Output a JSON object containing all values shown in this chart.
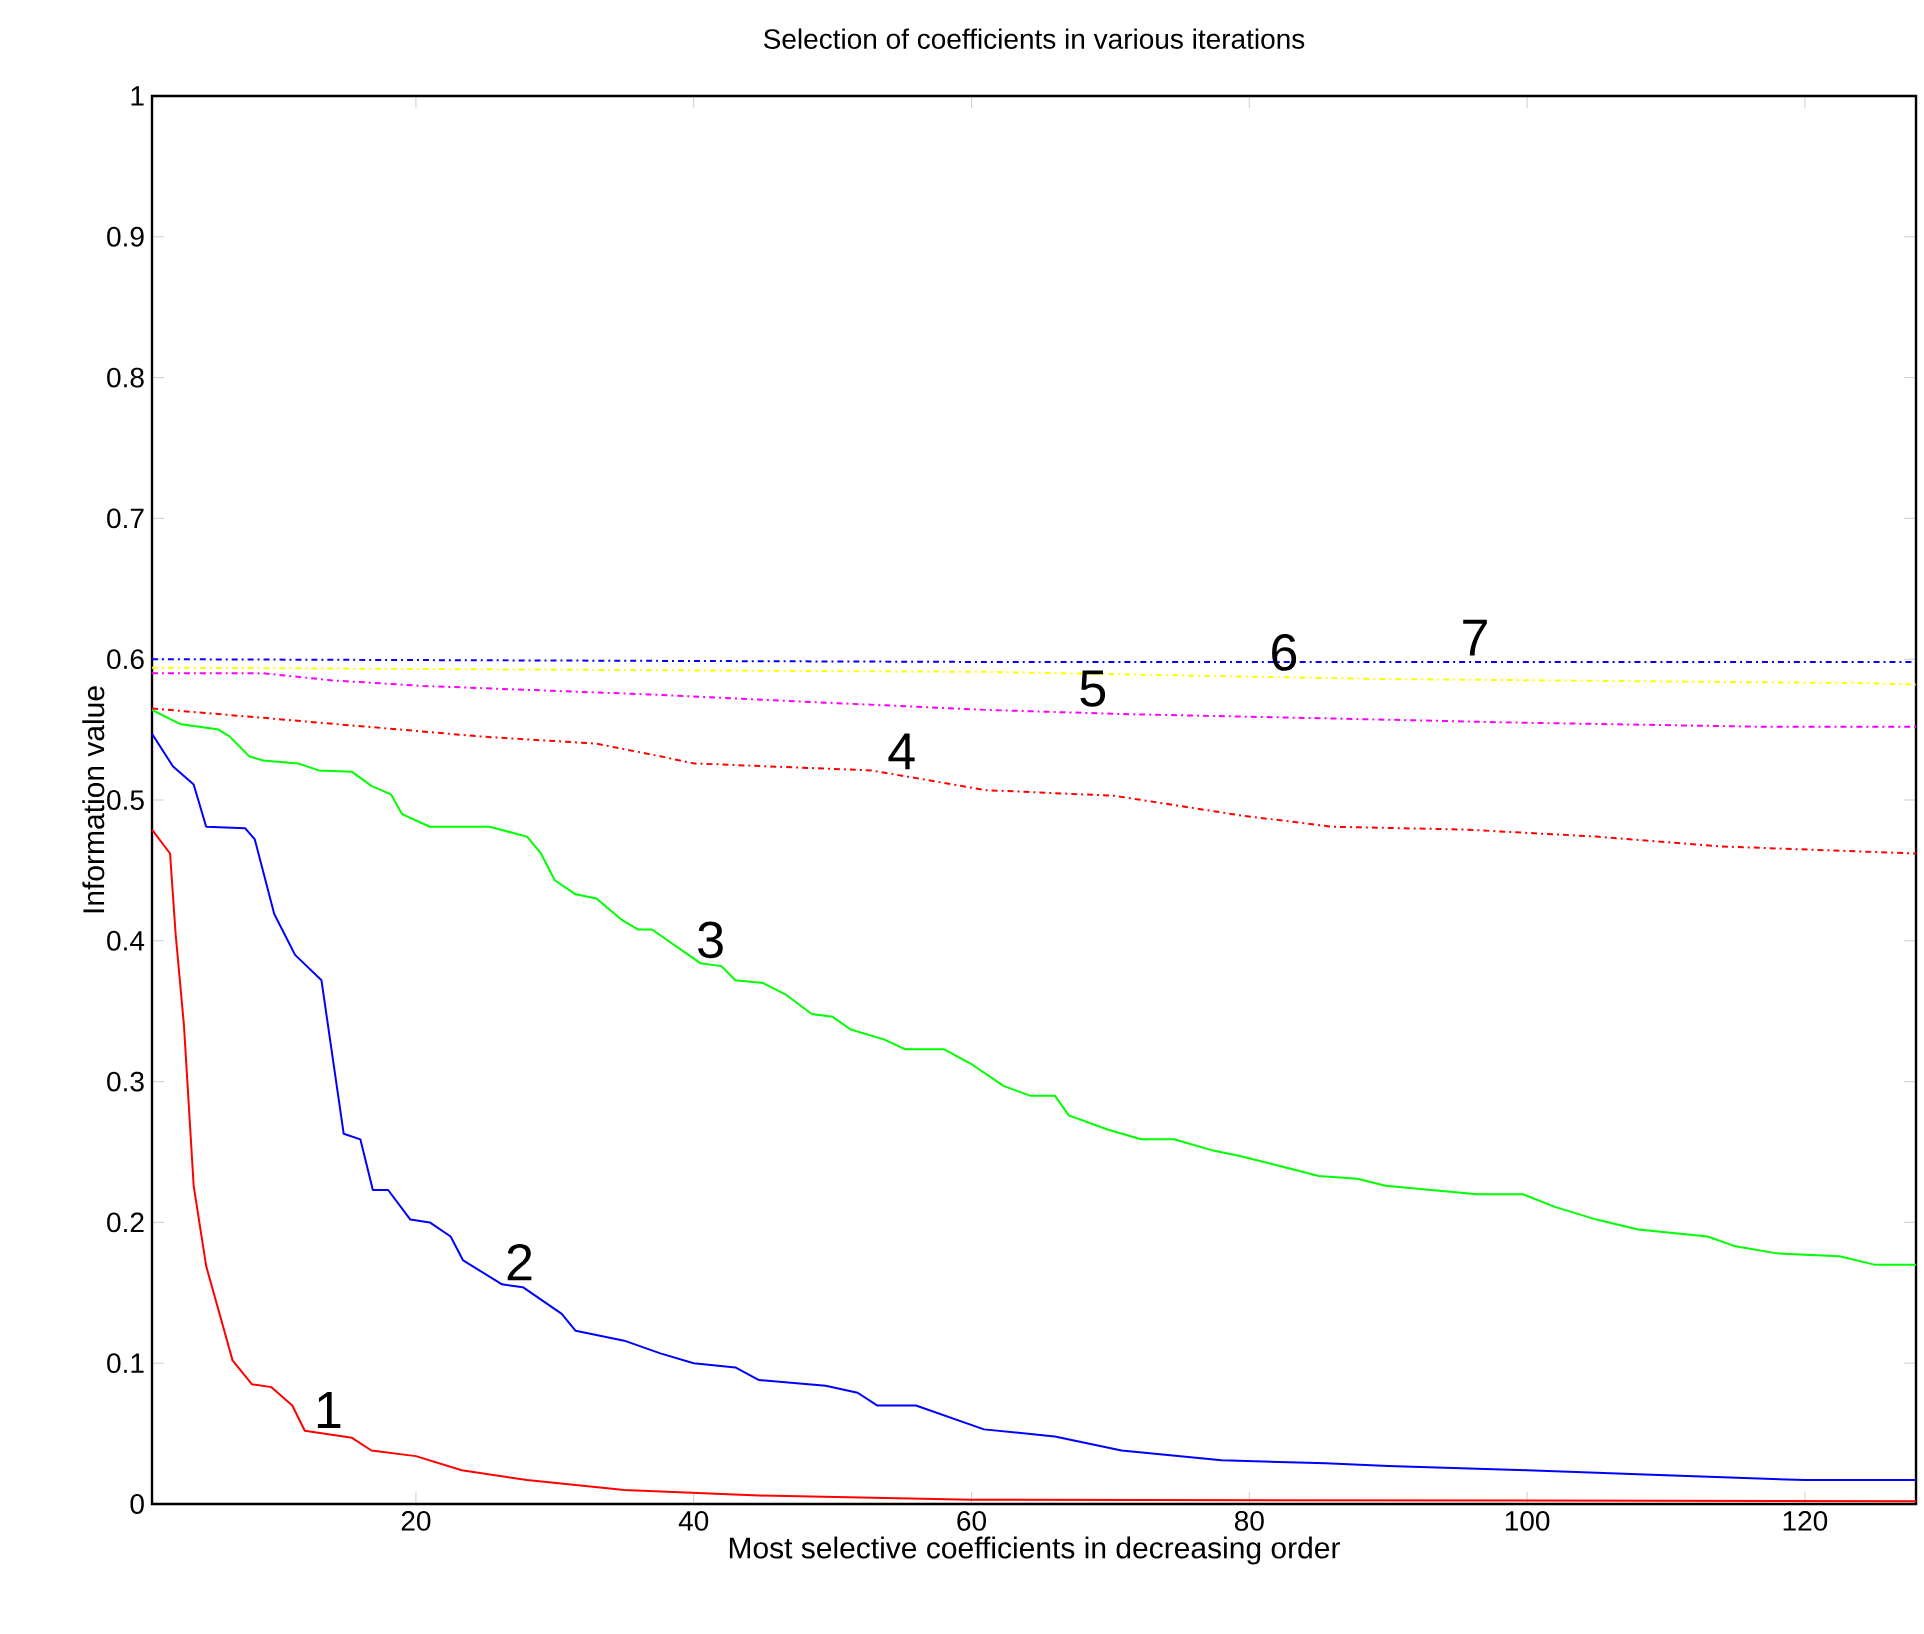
{
  "chart_data": {
    "type": "line",
    "title": "Selection of coefficients in various iterations",
    "xlabel": "Most selective coefficients in decreasing order",
    "ylabel": "Information value",
    "xlim": [
      1,
      128
    ],
    "ylim": [
      0,
      1
    ],
    "xticks": [
      20,
      40,
      60,
      80,
      100,
      120
    ],
    "yticks": [
      0,
      0.1,
      0.2,
      0.3,
      0.4,
      0.5,
      0.6,
      0.7,
      0.8,
      0.9,
      1
    ],
    "series": [
      {
        "name": "1",
        "color": "#ff0000",
        "line_style": "solid",
        "x": [
          1,
          2.3,
          2.7,
          3.3,
          4,
          4.9,
          6.8,
          8.2,
          9.6,
          11.1,
          12,
          15.4,
          16.8,
          20,
          23.3,
          28,
          35,
          44.7,
          60,
          128
        ],
        "values": [
          0.479,
          0.462,
          0.405,
          0.34,
          0.226,
          0.169,
          0.102,
          0.085,
          0.083,
          0.07,
          0.052,
          0.047,
          0.038,
          0.034,
          0.024,
          0.017,
          0.01,
          0.006,
          0.003,
          0.002
        ]
      },
      {
        "name": "2",
        "color": "#0000ff",
        "line_style": "solid",
        "x": [
          1,
          2.5,
          4,
          4.9,
          7.7,
          8.4,
          9.8,
          11.3,
          13.2,
          14.8,
          16,
          16.9,
          18,
          19.6,
          21,
          22.5,
          23.4,
          26.2,
          27.7,
          30.5,
          31.5,
          35,
          37.6,
          40,
          43,
          44.7,
          49.5,
          51.8,
          53.2,
          56,
          60.9,
          66,
          70.8,
          78,
          85.5,
          90,
          100,
          111,
          120,
          128
        ],
        "values": [
          0.547,
          0.524,
          0.511,
          0.481,
          0.48,
          0.472,
          0.419,
          0.39,
          0.372,
          0.263,
          0.259,
          0.223,
          0.223,
          0.202,
          0.2,
          0.19,
          0.173,
          0.156,
          0.154,
          0.135,
          0.123,
          0.116,
          0.107,
          0.1,
          0.097,
          0.088,
          0.084,
          0.079,
          0.07,
          0.07,
          0.053,
          0.048,
          0.038,
          0.031,
          0.029,
          0.027,
          0.024,
          0.02,
          0.017,
          0.017
        ]
      },
      {
        "name": "3",
        "color": "#00ff00",
        "line_style": "solid",
        "x": [
          1,
          3,
          5.8,
          6.6,
          8,
          9,
          11.5,
          13,
          15.4,
          16.8,
          18.2,
          19,
          21,
          25.3,
          28,
          29,
          30,
          31.5,
          33,
          34.8,
          36,
          37,
          40.5,
          42,
          43,
          45,
          46.6,
          48.5,
          50,
          51.3,
          53.7,
          55.2,
          58,
          59.9,
          62.3,
          64.2,
          66,
          67,
          69.8,
          72.2,
          74.6,
          77.4,
          79.4,
          82.2,
          85,
          87.8,
          89.8,
          96.4,
          99.7,
          102,
          105,
          108,
          113,
          115,
          118,
          122.5,
          125,
          128
        ],
        "values": [
          0.564,
          0.554,
          0.55,
          0.545,
          0.531,
          0.528,
          0.526,
          0.521,
          0.52,
          0.51,
          0.504,
          0.49,
          0.481,
          0.481,
          0.474,
          0.462,
          0.443,
          0.433,
          0.43,
          0.415,
          0.408,
          0.408,
          0.384,
          0.382,
          0.372,
          0.37,
          0.362,
          0.348,
          0.346,
          0.337,
          0.33,
          0.323,
          0.323,
          0.313,
          0.297,
          0.29,
          0.29,
          0.276,
          0.266,
          0.259,
          0.259,
          0.251,
          0.247,
          0.24,
          0.233,
          0.231,
          0.226,
          0.22,
          0.22,
          0.211,
          0.202,
          0.195,
          0.19,
          0.183,
          0.178,
          0.176,
          0.17,
          0.17
        ]
      },
      {
        "name": "4",
        "color": "#ff0000",
        "line_style": "dashdot",
        "x": [
          1,
          10.6,
          24.8,
          33,
          37.6,
          40,
          52.8,
          61,
          70.3,
          79.4,
          86,
          95.5,
          105,
          114,
          128
        ],
        "values": [
          0.565,
          0.557,
          0.545,
          0.54,
          0.531,
          0.526,
          0.521,
          0.507,
          0.503,
          0.489,
          0.481,
          0.479,
          0.474,
          0.467,
          0.462
        ]
      },
      {
        "name": "5",
        "color": "#ff00ff",
        "line_style": "dashdot",
        "x": [
          1,
          9,
          13.9,
          20.5,
          36.7,
          52,
          61,
          71,
          85.5,
          99,
          117,
          128
        ],
        "values": [
          0.59,
          0.59,
          0.585,
          0.581,
          0.575,
          0.568,
          0.564,
          0.561,
          0.558,
          0.555,
          0.552,
          0.552
        ]
      },
      {
        "name": "6",
        "color": "#ffff00",
        "line_style": "dashdot",
        "x": [
          1,
          61,
          89,
          124,
          128
        ],
        "values": [
          0.594,
          0.591,
          0.586,
          0.583,
          0.582
        ]
      },
      {
        "name": "7",
        "color": "#0000ff",
        "line_style": "dashdot",
        "x": [
          1,
          62,
          128
        ],
        "values": [
          0.6,
          0.598,
          0.598
        ]
      }
    ]
  }
}
